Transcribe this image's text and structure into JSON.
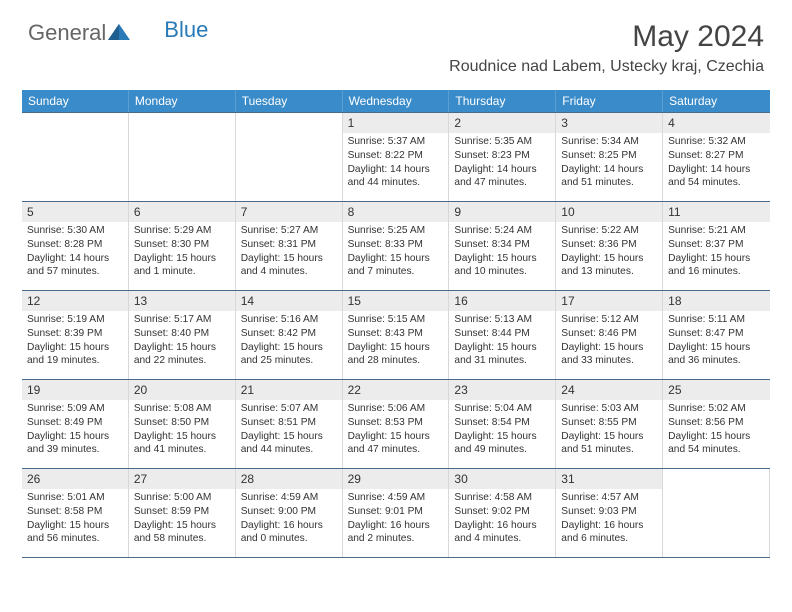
{
  "brand": {
    "part1": "General",
    "part2": "Blue"
  },
  "title": "May 2024",
  "location": "Roudnice nad Labem, Ustecky kraj, Czechia",
  "weekdays": [
    "Sunday",
    "Monday",
    "Tuesday",
    "Wednesday",
    "Thursday",
    "Friday",
    "Saturday"
  ],
  "colors": {
    "header_bg": "#3a8bc9",
    "header_text": "#ffffff",
    "shaded_bg": "#ececec",
    "border": "#4a6a8a",
    "text": "#333333",
    "brand_blue": "#2a7ab8",
    "brand_gray": "#666666"
  },
  "typography": {
    "title_fontsize": 30,
    "location_fontsize": 16,
    "weekday_fontsize": 12,
    "daynum_fontsize": 12,
    "detail_fontsize": 10.2
  },
  "weeks": [
    [
      null,
      null,
      null,
      {
        "n": "1",
        "sr": "Sunrise: 5:37 AM",
        "ss": "Sunset: 8:22 PM",
        "d1": "Daylight: 14 hours",
        "d2": "and 44 minutes."
      },
      {
        "n": "2",
        "sr": "Sunrise: 5:35 AM",
        "ss": "Sunset: 8:23 PM",
        "d1": "Daylight: 14 hours",
        "d2": "and 47 minutes."
      },
      {
        "n": "3",
        "sr": "Sunrise: 5:34 AM",
        "ss": "Sunset: 8:25 PM",
        "d1": "Daylight: 14 hours",
        "d2": "and 51 minutes."
      },
      {
        "n": "4",
        "sr": "Sunrise: 5:32 AM",
        "ss": "Sunset: 8:27 PM",
        "d1": "Daylight: 14 hours",
        "d2": "and 54 minutes."
      }
    ],
    [
      {
        "n": "5",
        "sr": "Sunrise: 5:30 AM",
        "ss": "Sunset: 8:28 PM",
        "d1": "Daylight: 14 hours",
        "d2": "and 57 minutes."
      },
      {
        "n": "6",
        "sr": "Sunrise: 5:29 AM",
        "ss": "Sunset: 8:30 PM",
        "d1": "Daylight: 15 hours",
        "d2": "and 1 minute."
      },
      {
        "n": "7",
        "sr": "Sunrise: 5:27 AM",
        "ss": "Sunset: 8:31 PM",
        "d1": "Daylight: 15 hours",
        "d2": "and 4 minutes."
      },
      {
        "n": "8",
        "sr": "Sunrise: 5:25 AM",
        "ss": "Sunset: 8:33 PM",
        "d1": "Daylight: 15 hours",
        "d2": "and 7 minutes."
      },
      {
        "n": "9",
        "sr": "Sunrise: 5:24 AM",
        "ss": "Sunset: 8:34 PM",
        "d1": "Daylight: 15 hours",
        "d2": "and 10 minutes."
      },
      {
        "n": "10",
        "sr": "Sunrise: 5:22 AM",
        "ss": "Sunset: 8:36 PM",
        "d1": "Daylight: 15 hours",
        "d2": "and 13 minutes."
      },
      {
        "n": "11",
        "sr": "Sunrise: 5:21 AM",
        "ss": "Sunset: 8:37 PM",
        "d1": "Daylight: 15 hours",
        "d2": "and 16 minutes."
      }
    ],
    [
      {
        "n": "12",
        "sr": "Sunrise: 5:19 AM",
        "ss": "Sunset: 8:39 PM",
        "d1": "Daylight: 15 hours",
        "d2": "and 19 minutes."
      },
      {
        "n": "13",
        "sr": "Sunrise: 5:17 AM",
        "ss": "Sunset: 8:40 PM",
        "d1": "Daylight: 15 hours",
        "d2": "and 22 minutes."
      },
      {
        "n": "14",
        "sr": "Sunrise: 5:16 AM",
        "ss": "Sunset: 8:42 PM",
        "d1": "Daylight: 15 hours",
        "d2": "and 25 minutes."
      },
      {
        "n": "15",
        "sr": "Sunrise: 5:15 AM",
        "ss": "Sunset: 8:43 PM",
        "d1": "Daylight: 15 hours",
        "d2": "and 28 minutes."
      },
      {
        "n": "16",
        "sr": "Sunrise: 5:13 AM",
        "ss": "Sunset: 8:44 PM",
        "d1": "Daylight: 15 hours",
        "d2": "and 31 minutes."
      },
      {
        "n": "17",
        "sr": "Sunrise: 5:12 AM",
        "ss": "Sunset: 8:46 PM",
        "d1": "Daylight: 15 hours",
        "d2": "and 33 minutes."
      },
      {
        "n": "18",
        "sr": "Sunrise: 5:11 AM",
        "ss": "Sunset: 8:47 PM",
        "d1": "Daylight: 15 hours",
        "d2": "and 36 minutes."
      }
    ],
    [
      {
        "n": "19",
        "sr": "Sunrise: 5:09 AM",
        "ss": "Sunset: 8:49 PM",
        "d1": "Daylight: 15 hours",
        "d2": "and 39 minutes."
      },
      {
        "n": "20",
        "sr": "Sunrise: 5:08 AM",
        "ss": "Sunset: 8:50 PM",
        "d1": "Daylight: 15 hours",
        "d2": "and 41 minutes."
      },
      {
        "n": "21",
        "sr": "Sunrise: 5:07 AM",
        "ss": "Sunset: 8:51 PM",
        "d1": "Daylight: 15 hours",
        "d2": "and 44 minutes."
      },
      {
        "n": "22",
        "sr": "Sunrise: 5:06 AM",
        "ss": "Sunset: 8:53 PM",
        "d1": "Daylight: 15 hours",
        "d2": "and 47 minutes."
      },
      {
        "n": "23",
        "sr": "Sunrise: 5:04 AM",
        "ss": "Sunset: 8:54 PM",
        "d1": "Daylight: 15 hours",
        "d2": "and 49 minutes."
      },
      {
        "n": "24",
        "sr": "Sunrise: 5:03 AM",
        "ss": "Sunset: 8:55 PM",
        "d1": "Daylight: 15 hours",
        "d2": "and 51 minutes."
      },
      {
        "n": "25",
        "sr": "Sunrise: 5:02 AM",
        "ss": "Sunset: 8:56 PM",
        "d1": "Daylight: 15 hours",
        "d2": "and 54 minutes."
      }
    ],
    [
      {
        "n": "26",
        "sr": "Sunrise: 5:01 AM",
        "ss": "Sunset: 8:58 PM",
        "d1": "Daylight: 15 hours",
        "d2": "and 56 minutes."
      },
      {
        "n": "27",
        "sr": "Sunrise: 5:00 AM",
        "ss": "Sunset: 8:59 PM",
        "d1": "Daylight: 15 hours",
        "d2": "and 58 minutes."
      },
      {
        "n": "28",
        "sr": "Sunrise: 4:59 AM",
        "ss": "Sunset: 9:00 PM",
        "d1": "Daylight: 16 hours",
        "d2": "and 0 minutes."
      },
      {
        "n": "29",
        "sr": "Sunrise: 4:59 AM",
        "ss": "Sunset: 9:01 PM",
        "d1": "Daylight: 16 hours",
        "d2": "and 2 minutes."
      },
      {
        "n": "30",
        "sr": "Sunrise: 4:58 AM",
        "ss": "Sunset: 9:02 PM",
        "d1": "Daylight: 16 hours",
        "d2": "and 4 minutes."
      },
      {
        "n": "31",
        "sr": "Sunrise: 4:57 AM",
        "ss": "Sunset: 9:03 PM",
        "d1": "Daylight: 16 hours",
        "d2": "and 6 minutes."
      },
      null
    ]
  ]
}
